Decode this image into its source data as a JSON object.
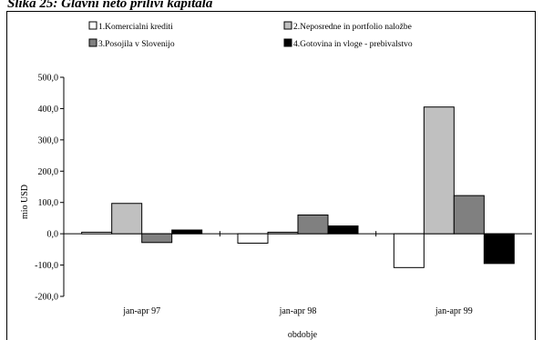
{
  "header": {
    "title": "Slika 25: Glavni neto prilivi kapitala"
  },
  "chart_data": {
    "type": "bar",
    "categories": [
      "jan-apr 97",
      "jan-apr 98",
      "jan-apr 99"
    ],
    "series": [
      {
        "name": "1.Komercialni krediti",
        "color": "#ffffff",
        "values": [
          5,
          -30,
          -108
        ]
      },
      {
        "name": "2.Neposredne in portfolio naložbe",
        "color": "#c0c0c0",
        "values": [
          97,
          5,
          405
        ]
      },
      {
        "name": "3.Posojila v Slovenijo",
        "color": "#808080",
        "values": [
          -28,
          60,
          122
        ]
      },
      {
        "name": "4.Gotovina in vloge - prebivalstvo",
        "color": "#000000",
        "values": [
          12,
          25,
          -95
        ]
      }
    ],
    "xlabel": "obdobje",
    "ylabel": "mio USD",
    "ylim": [
      -200,
      500
    ],
    "yticks": [
      -200,
      -100,
      0,
      100,
      200,
      300,
      400,
      500
    ],
    "ytick_labels": [
      "-200,0",
      "-100,0",
      "0,0",
      "100,0",
      "200,0",
      "300,0",
      "400,0",
      "500,0"
    ],
    "legend_position": "top",
    "grid": false
  }
}
